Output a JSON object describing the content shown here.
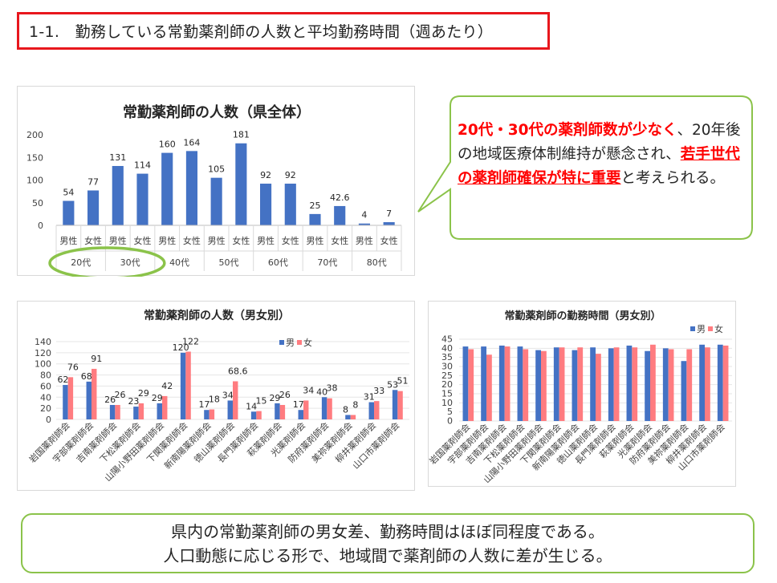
{
  "page": {
    "title": "1-1.　勤務している常勤薬剤師の人数と平均勤務時間（週あたり）"
  },
  "callout": {
    "part1": "20代・30代の薬剤師数が少なく",
    "part2": "、20年後の地域医療体制維持が懸念され、",
    "part3": "若手世代の薬剤師確保が特に重要",
    "part4": "と考えられる。"
  },
  "summary": {
    "line1": "県内の常勤薬剤師の男女差、勤務時間はほぼ同程度である。",
    "line2": "人口動態に応じる形で、地域間で薬剤師の人数に差が生じる。"
  },
  "colors": {
    "blue": "#4472c4",
    "pink": "#ff7c80",
    "highlight_ring": "#8bc34a",
    "callout_border": "#8bc34a"
  },
  "chart_data": [
    {
      "id": "total",
      "type": "bar",
      "title": "常勤薬剤師の人数（県全体）",
      "ylim": [
        0,
        200
      ],
      "yticks": [
        0,
        50,
        100,
        150,
        200
      ],
      "categories": [
        "男性",
        "女性",
        "男性",
        "女性",
        "男性",
        "女性",
        "男性",
        "女性",
        "男性",
        "女性",
        "男性",
        "女性",
        "男性",
        "女性"
      ],
      "groups": [
        "20代",
        "30代",
        "40代",
        "50代",
        "60代",
        "70代",
        "80代"
      ],
      "values": [
        54,
        77,
        131,
        114,
        160,
        164,
        105,
        181,
        92,
        92,
        25,
        42.6,
        4,
        7
      ],
      "labels": [
        "54",
        "77",
        "131",
        "114",
        "160",
        "164",
        "105",
        "181",
        "92",
        "92",
        "25",
        "42.6",
        "4",
        "7"
      ],
      "highlighted_groups": [
        "20代",
        "30代"
      ],
      "grid": false
    },
    {
      "id": "gender",
      "type": "bar",
      "title": "常勤薬剤師の人数（男女別）",
      "ylim": [
        0,
        140
      ],
      "yticks": [
        0,
        20,
        40,
        60,
        80,
        100,
        120,
        140
      ],
      "legend": "top-right",
      "categories": [
        "岩国薬剤師会",
        "宇部薬剤師会",
        "吉南薬剤師会",
        "下松薬剤師会",
        "山陽小野田薬剤師会",
        "下関薬剤師会",
        "新南陽薬剤師会",
        "徳山薬剤師会",
        "長門薬剤師会",
        "萩薬剤師会",
        "光薬剤師会",
        "防府薬剤師会",
        "美祢薬剤師会",
        "柳井薬剤師会",
        "山口市薬剤師会"
      ],
      "series": [
        {
          "name": "男",
          "values": [
            62,
            68,
            26,
            23,
            29,
            120,
            17,
            34,
            14,
            29,
            17,
            40,
            8,
            31,
            53
          ],
          "labels": [
            "62",
            "68",
            "26",
            "23",
            "29",
            "120",
            "17",
            "34",
            "14",
            "29",
            "17",
            "40",
            "8",
            "31",
            "53"
          ]
        },
        {
          "name": "女",
          "values": [
            76,
            91,
            26,
            29,
            42,
            122,
            18,
            68.6,
            15,
            26,
            34,
            38,
            8,
            33,
            51
          ],
          "labels": [
            "76",
            "91",
            "26",
            "29",
            "42",
            "122",
            "18",
            "68.6",
            "15",
            "26",
            "34",
            "38",
            "8",
            "33",
            "51"
          ]
        }
      ],
      "grid": true
    },
    {
      "id": "hours",
      "type": "bar",
      "title": "常勤薬剤師の勤務時間（男女別）",
      "ylim": [
        0,
        45
      ],
      "yticks": [
        0,
        5,
        10,
        15,
        20,
        25,
        30,
        35,
        40,
        45
      ],
      "legend": "top-right",
      "categories": [
        "岩国薬剤師会",
        "宇部薬剤師会",
        "吉南薬剤師会",
        "下松薬剤師会",
        "山陽小野田薬剤師会",
        "下関薬剤師会",
        "新南陽薬剤師会",
        "徳山薬剤師会",
        "長門薬剤師会",
        "萩薬剤師会",
        "光薬剤師会",
        "防府薬剤師会",
        "美祢薬剤師会",
        "柳井薬剤師会",
        "山口市薬剤師会"
      ],
      "series": [
        {
          "name": "男",
          "values": [
            41,
            41,
            41.5,
            41,
            39,
            40.5,
            39,
            40.5,
            40,
            41.5,
            38.5,
            40,
            33,
            42,
            42
          ]
        },
        {
          "name": "女",
          "values": [
            39.5,
            36.5,
            41,
            39.5,
            38.5,
            40.5,
            40.5,
            37,
            40.5,
            40.5,
            42,
            39.5,
            39.5,
            40.5,
            41.5
          ]
        }
      ],
      "grid": true
    }
  ]
}
